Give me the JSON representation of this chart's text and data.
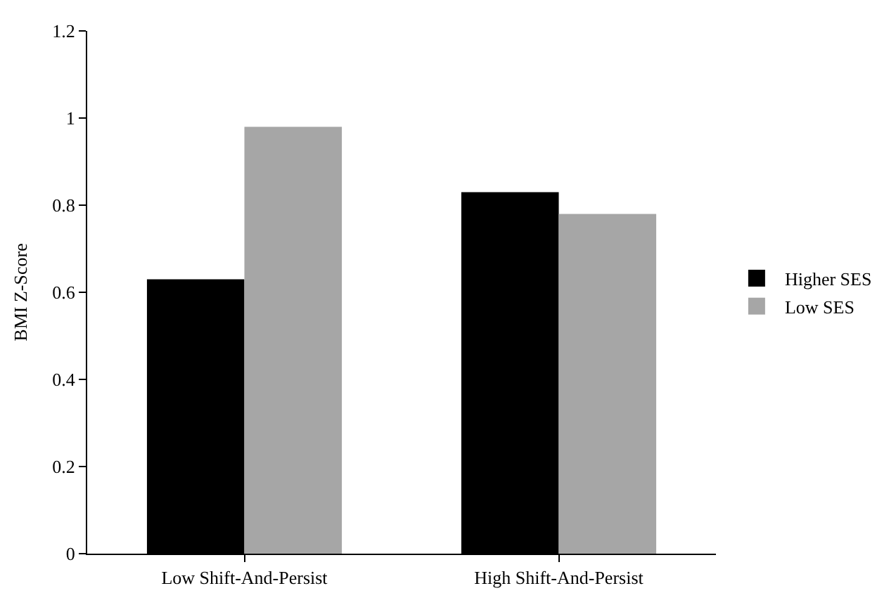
{
  "chart_data": {
    "type": "bar",
    "ylabel": "BMI Z-Score",
    "categories": [
      "Low Shift-And-Persist",
      "High Shift-And-Persist"
    ],
    "series": [
      {
        "name": "Higher SES",
        "color": "#000000",
        "values": [
          0.63,
          0.83
        ]
      },
      {
        "name": "Low SES",
        "color": "#a6a6a6",
        "values": [
          0.98,
          0.78
        ]
      }
    ],
    "ylim": [
      0,
      1.2
    ],
    "yticks": [
      0,
      {
        "value": 0.2,
        "label": "0.2"
      },
      {
        "value": 0.4,
        "label": "0.4"
      },
      {
        "value": 0.6,
        "label": "0.6"
      },
      {
        "value": 0.8,
        "label": "0.8"
      },
      1,
      {
        "value": 1.2,
        "label": "1.2"
      }
    ],
    "grid": false,
    "legend": "right"
  }
}
